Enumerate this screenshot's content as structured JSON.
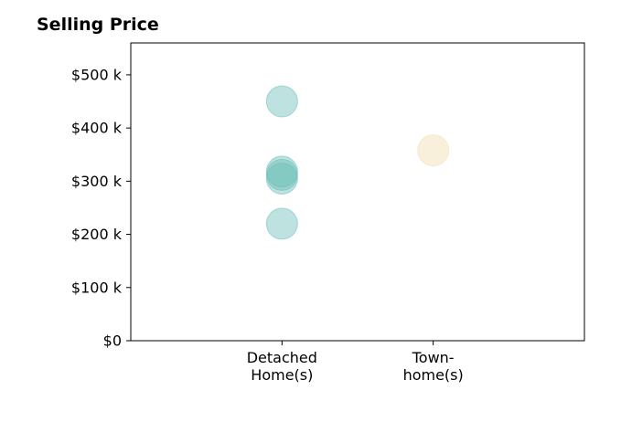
{
  "chart_data": {
    "type": "scatter",
    "title": "Selling Price",
    "xlabel": "",
    "ylabel": "",
    "categories": [
      "Detached Home(s)",
      "Town- home(s)"
    ],
    "category_lines": [
      [
        "Detached",
        "Home(s)"
      ],
      [
        "Town-",
        "home(s)"
      ]
    ],
    "xlim": [
      -1,
      2
    ],
    "ylim": [
      0,
      560000
    ],
    "y_ticks": [
      0,
      100000,
      200000,
      300000,
      400000,
      500000
    ],
    "y_tick_labels": [
      "$0",
      "$100 k",
      "$200 k",
      "$300 k",
      "$400 k",
      "$500 k"
    ],
    "grid": false,
    "series": [
      {
        "color": "#6dbfb8",
        "points": [
          {
            "category": "Detached Home(s)",
            "y": 450000
          },
          {
            "category": "Detached Home(s)",
            "y": 318000
          },
          {
            "category": "Detached Home(s)",
            "y": 312000
          },
          {
            "category": "Detached Home(s)",
            "y": 305000
          },
          {
            "category": "Detached Home(s)",
            "y": 220000
          }
        ]
      },
      {
        "color": "#f2ddb0",
        "points": [
          {
            "category": "Town- home(s)",
            "y": 358000
          }
        ]
      }
    ]
  }
}
